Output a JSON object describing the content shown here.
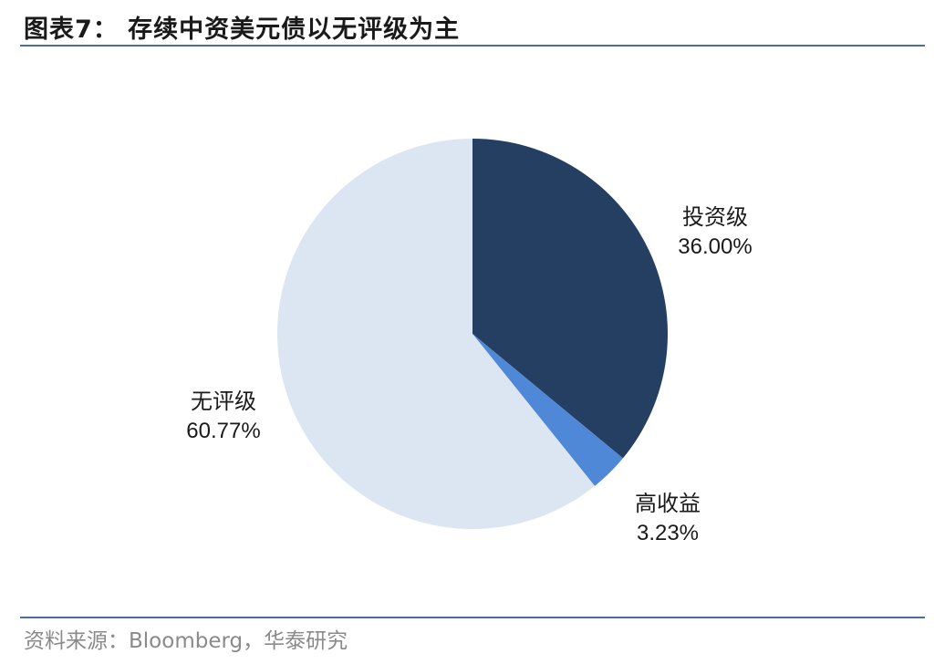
{
  "header": {
    "title": "图表7：  存续中资美元债以无评级为主"
  },
  "footer": {
    "source": "资料来源：Bloomberg，华泰研究"
  },
  "chart_data": {
    "type": "pie",
    "title": "图表7：  存续中资美元债以无评级为主",
    "start_angle_deg": 0,
    "direction": "clockwise",
    "slices": [
      {
        "name": "投资级",
        "value": 36.0,
        "label": "36.00%",
        "color": "#253f63"
      },
      {
        "name": "高收益",
        "value": 3.23,
        "label": "3.23%",
        "color": "#4f88d6"
      },
      {
        "name": "无评级",
        "value": 60.77,
        "label": "60.77%",
        "color": "#dce6f2"
      }
    ]
  }
}
